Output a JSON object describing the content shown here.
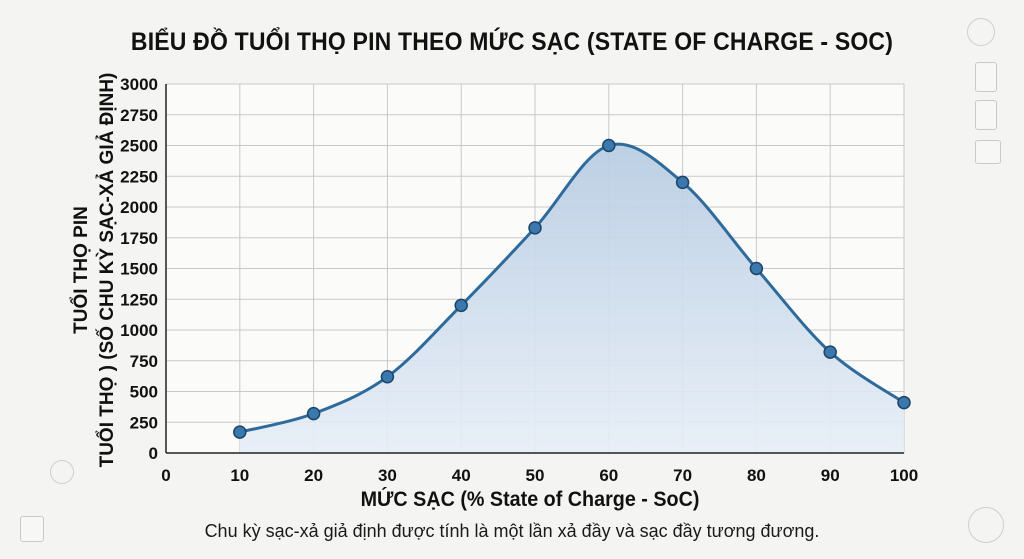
{
  "chart_data": {
    "type": "area",
    "title": "BIỂU ĐỒ TUỔI THỌ PIN THEO MỨC SẠC (STATE OF CHARGE - SOC)",
    "xlabel": "MỨC SẠC (% State of Charge - SoC)",
    "ylabel_lines": [
      "TUỔI THỌ PIN",
      "TUỔI THỌ ) (SỐ CHU KỲ SẠC-XẢ GIẢ ĐỊNH)"
    ],
    "note": "Chu kỳ sạc-xả giả định được tính là một lần xả đầy và sạc đầy tương đương.",
    "x": [
      10,
      20,
      30,
      40,
      50,
      60,
      70,
      80,
      90,
      100
    ],
    "y": [
      170,
      320,
      620,
      1200,
      1830,
      2500,
      2200,
      1500,
      820,
      410
    ],
    "xlim": [
      0,
      100
    ],
    "ylim": [
      0,
      3000
    ],
    "x_ticks": [
      0,
      10,
      20,
      30,
      40,
      50,
      60,
      70,
      80,
      90,
      100
    ],
    "y_ticks": [
      0,
      250,
      500,
      750,
      1000,
      1250,
      1500,
      1750,
      2000,
      2250,
      2500,
      2750,
      3000
    ],
    "grid": true,
    "line_color": "#2f6b9a",
    "marker_color": "#3a78ad",
    "fill_color": "#cfdcec"
  }
}
